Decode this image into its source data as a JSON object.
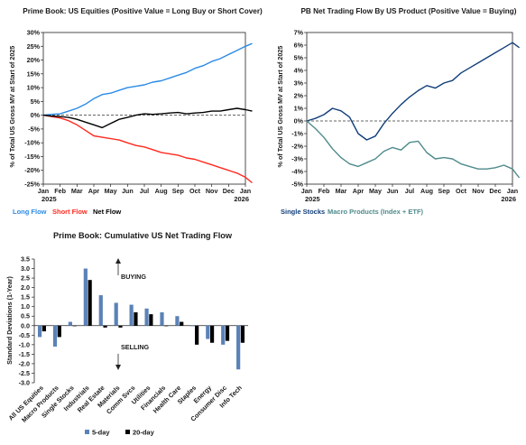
{
  "chart_data": [
    {
      "type": "line",
      "title": "Prime Book: US Equities (Positive Value = Long Buy or Short Cover)",
      "ylabel": "% of Total US Gross MV at Start of 2025",
      "x_labels": [
        "Jan",
        "Feb",
        "Mar",
        "Apr",
        "May",
        "Jun",
        "Jul",
        "Aug",
        "Sep",
        "Oct",
        "Nov",
        "Dec",
        "Jan"
      ],
      "year_labels": [
        "2025",
        "2026"
      ],
      "y_ticks": [
        "30%",
        "25%",
        "20%",
        "15%",
        "10%",
        "5%",
        "0%",
        "-5%",
        "-10%",
        "-15%",
        "-20%",
        "-25%"
      ],
      "ylim": [
        -25,
        30
      ],
      "zero_line": "dashed",
      "series": [
        {
          "name": "Long Flow",
          "color": "#2b8be6",
          "x": [
            0,
            0.5,
            1,
            1.5,
            2,
            2.5,
            3,
            3.5,
            4,
            4.5,
            5,
            5.5,
            6,
            6.5,
            7,
            7.5,
            8,
            8.5,
            9,
            9.5,
            10,
            10.5,
            11,
            11.5,
            12,
            12.4
          ],
          "values": [
            0,
            0.3,
            0.5,
            1.5,
            2.5,
            4,
            6,
            7.5,
            8,
            9,
            10,
            10.5,
            11,
            12,
            12.5,
            13.5,
            14.5,
            15.5,
            17,
            18,
            19.5,
            20.5,
            22,
            23.5,
            25,
            26
          ]
        },
        {
          "name": "Short Flow",
          "color": "#ff2a1f",
          "x": [
            0,
            0.5,
            1,
            1.5,
            2,
            2.5,
            3,
            3.5,
            4,
            4.5,
            5,
            5.5,
            6,
            6.5,
            7,
            7.5,
            8,
            8.5,
            9,
            9.5,
            10,
            10.5,
            11,
            11.5,
            12,
            12.4
          ],
          "values": [
            0,
            -0.5,
            -1,
            -2,
            -3.5,
            -5.5,
            -7.5,
            -8,
            -8.5,
            -9,
            -10,
            -11,
            -11.5,
            -12.5,
            -13.5,
            -14,
            -14.5,
            -15.5,
            -16,
            -17,
            -18,
            -19,
            -20,
            -21,
            -22.5,
            -24.5
          ]
        },
        {
          "name": "Net Flow",
          "color": "#000000",
          "x": [
            0,
            0.5,
            1,
            1.5,
            2,
            2.5,
            3,
            3.5,
            4,
            4.5,
            5,
            5.5,
            6,
            6.5,
            7,
            7.5,
            8,
            8.5,
            9,
            9.5,
            10,
            10.5,
            11,
            11.5,
            12,
            12.4
          ],
          "values": [
            0,
            -0.3,
            -0.5,
            -0.8,
            -1.5,
            -2.5,
            -3.5,
            -4.5,
            -3,
            -1.5,
            -0.8,
            0,
            0.5,
            0.3,
            0.5,
            0.8,
            1,
            0.5,
            0.8,
            1,
            1.5,
            1.5,
            2,
            2.5,
            2,
            1.5
          ]
        }
      ],
      "legend": {
        "placement": "bottom-left",
        "items": [
          {
            "label": "Long Flow",
            "color": "#2b8be6"
          },
          {
            "label": "Short Flow",
            "color": "#ff2a1f"
          },
          {
            "label": "Net Flow",
            "color": "#000000"
          }
        ]
      }
    },
    {
      "type": "line",
      "title": "PB Net Trading Flow By US Product (Positive Value = Buying)",
      "ylabel": "% of Total US Gross MV at Start of 2025",
      "x_labels": [
        "Jan",
        "Feb",
        "Mar",
        "Apr",
        "May",
        "Jun",
        "Jul",
        "Aug",
        "Sep",
        "Oct",
        "Nov",
        "Dec",
        "Jan"
      ],
      "year_labels": [
        "2025",
        "2026"
      ],
      "y_ticks": [
        "7%",
        "6%",
        "5%",
        "4%",
        "3%",
        "2%",
        "1%",
        "0%",
        "-1%",
        "-2%",
        "-3%",
        "-4%",
        "-5%"
      ],
      "ylim": [
        -5,
        7
      ],
      "zero_line": "dashed",
      "series": [
        {
          "name": "Single Stocks",
          "color": "#123f7a",
          "x": [
            0,
            0.5,
            1,
            1.5,
            2,
            2.5,
            3,
            3.5,
            4,
            4.5,
            5,
            5.5,
            6,
            6.5,
            7,
            7.5,
            8,
            8.5,
            9,
            9.5,
            10,
            10.5,
            11,
            11.5,
            12,
            12.4
          ],
          "values": [
            0,
            0.2,
            0.5,
            1.0,
            0.8,
            0.3,
            -1.0,
            -1.5,
            -1.2,
            -0.2,
            0.6,
            1.3,
            1.9,
            2.4,
            2.8,
            2.6,
            3.0,
            3.2,
            3.8,
            4.2,
            4.6,
            5.0,
            5.4,
            5.8,
            6.2,
            5.8
          ]
        },
        {
          "name": "Macro Products (Index + ETF)",
          "color": "#4f8a8b",
          "x": [
            0,
            0.5,
            1,
            1.5,
            2,
            2.5,
            3,
            3.5,
            4,
            4.5,
            5,
            5.5,
            6,
            6.5,
            7,
            7.5,
            8,
            8.5,
            9,
            9.5,
            10,
            10.5,
            11,
            11.5,
            12,
            12.4
          ],
          "values": [
            0,
            -0.6,
            -1.3,
            -2.2,
            -2.9,
            -3.4,
            -3.6,
            -3.3,
            -3.0,
            -2.4,
            -2.1,
            -2.3,
            -1.7,
            -1.6,
            -2.5,
            -3.0,
            -2.9,
            -3.0,
            -3.4,
            -3.6,
            -3.8,
            -3.8,
            -3.7,
            -3.5,
            -3.8,
            -4.5
          ]
        }
      ],
      "legend": {
        "placement": "bottom-left",
        "items": [
          {
            "label": "Single Stocks",
            "color": "#123f7a"
          },
          {
            "label": "Macro Products (Index + ETF)",
            "color": "#4f8a8b"
          }
        ]
      }
    },
    {
      "type": "bar",
      "title": "Prime Book: Cumulative US Net Trading Flow",
      "ylabel": "Standard Deviations (1-Year)",
      "y_ticks": [
        "3.5",
        "3.0",
        "2.5",
        "2.0",
        "1.5",
        "1.0",
        "0.5",
        "0.0",
        "-0.5",
        "-1.0",
        "-1.5",
        "-2.0",
        "-2.5",
        "-3.0"
      ],
      "ylim": [
        -3.0,
        3.5
      ],
      "categories": [
        "All US Equities",
        "Macro Products",
        "Single Stocks",
        "Industrials",
        "Real Estate",
        "Materials",
        "Comm Svcs",
        "Utilities",
        "Financials",
        "Health Care",
        "Staples",
        "Energy",
        "Consumer Disc",
        "Info Tech"
      ],
      "series": [
        {
          "name": "5-day",
          "color": "#5b82b8",
          "values": [
            -0.6,
            -1.1,
            0.2,
            3.0,
            1.6,
            1.2,
            1.1,
            0.9,
            0.7,
            0.5,
            0.0,
            -0.7,
            -1.0,
            -2.3
          ]
        },
        {
          "name": "20-day",
          "color": "#000000",
          "values": [
            -0.3,
            -0.6,
            0.0,
            2.4,
            -0.1,
            -0.1,
            0.7,
            0.6,
            0.0,
            0.2,
            -1.0,
            -0.9,
            -0.8,
            -0.9
          ]
        }
      ],
      "annotations": [
        {
          "text": "BUYING",
          "direction": "up"
        },
        {
          "text": "SELLING",
          "direction": "down"
        }
      ],
      "legend": {
        "placement": "bottom-center",
        "items": [
          {
            "label": "5-day",
            "color": "#5b82b8"
          },
          {
            "label": "20-day",
            "color": "#000000"
          }
        ]
      }
    }
  ]
}
